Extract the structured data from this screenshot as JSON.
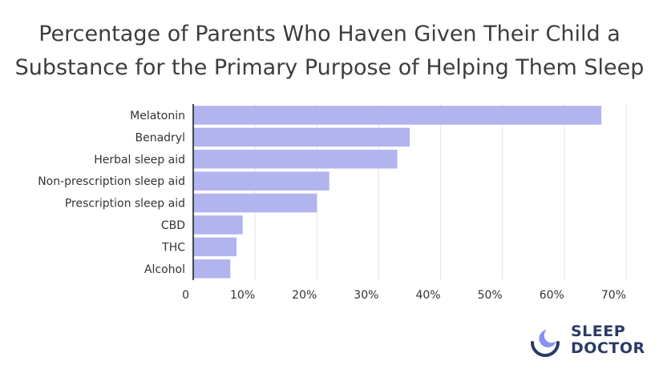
{
  "chart_data": {
    "type": "bar",
    "orientation": "horizontal",
    "title_lines": [
      "Percentage of Parents Who Haven Given Their Child a",
      "Substance for the Primary Purpose of Helping Them Sleep"
    ],
    "categories": [
      "Melatonin",
      "Benadryl",
      "Herbal sleep aid",
      "Non-prescription sleep aid",
      "Prescription sleep aid",
      "CBD",
      "THC",
      "Alcohol"
    ],
    "values": [
      66,
      35,
      33,
      22,
      20,
      8,
      7,
      6
    ],
    "xlim": [
      0,
      70
    ],
    "xticks": [
      "0",
      "10%",
      "20%",
      "30%",
      "40%",
      "50%",
      "60%",
      "70%"
    ],
    "grid": true,
    "bar_color": "#b1b4ef",
    "grid_color": "#e3e3e3"
  },
  "brand": {
    "line1": "SLEEP",
    "line2": "DOCTOR",
    "color": "#2b3a67",
    "accent": "#8b91f0"
  }
}
